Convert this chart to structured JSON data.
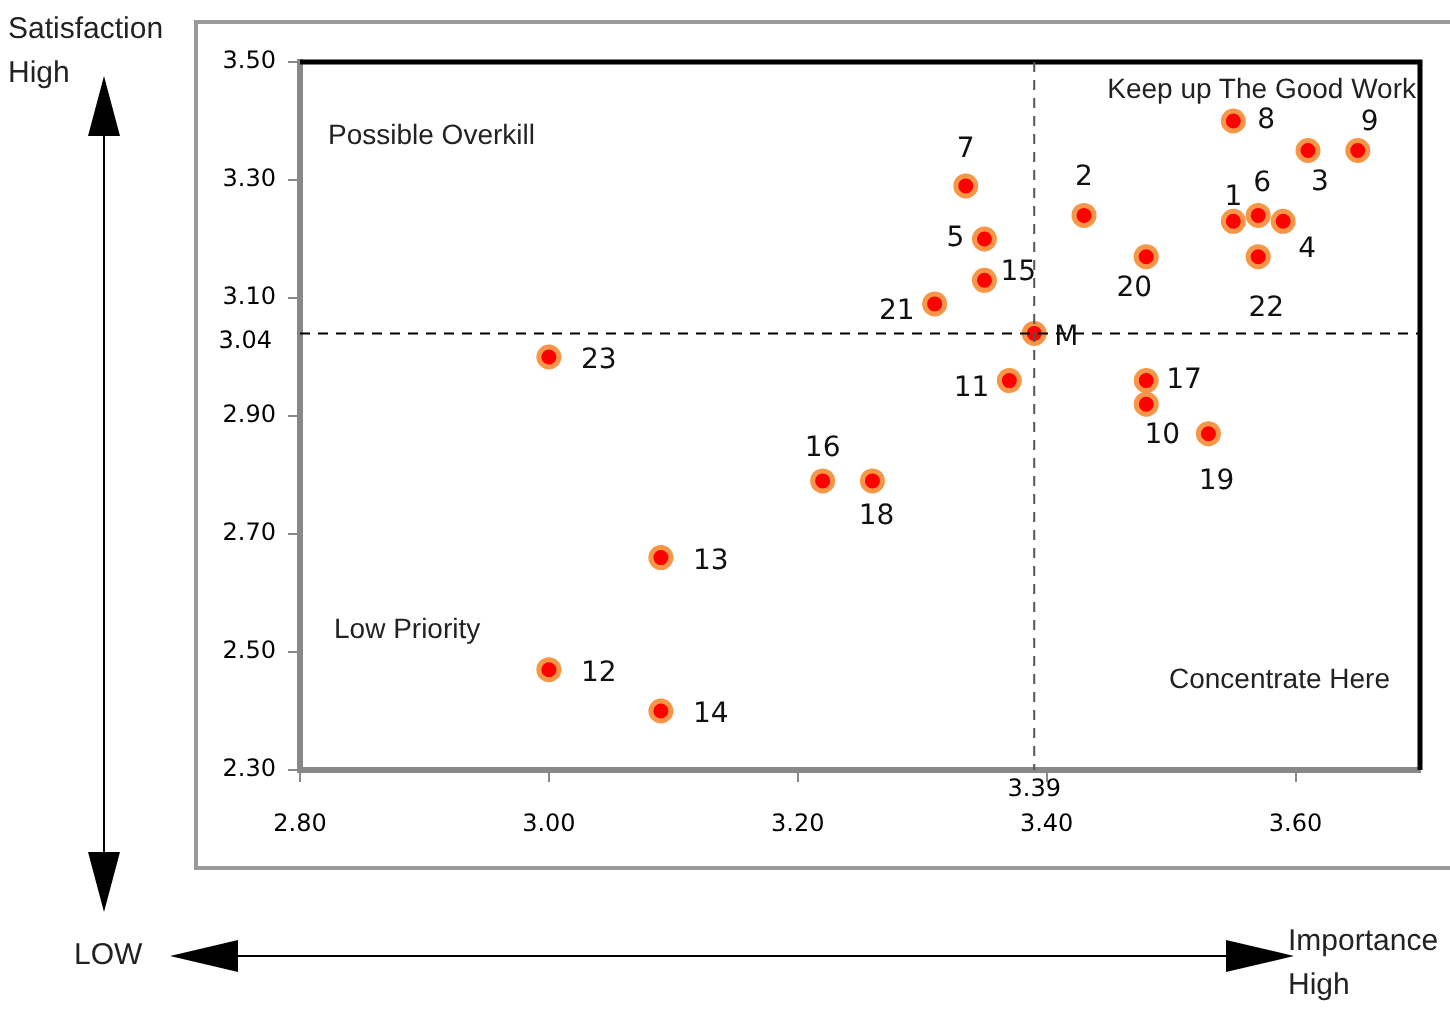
{
  "chart_data": {
    "type": "scatter",
    "xlabel": "Importance High",
    "ylabel": "Satisfaction High",
    "marker": "circle",
    "legend": false,
    "grid": false,
    "xlim": [
      2.8,
      3.7
    ],
    "ylim": [
      2.3,
      3.5
    ],
    "xticks": [
      {
        "value": 2.8,
        "label": "2.80"
      },
      {
        "value": 3.0,
        "label": "3.00"
      },
      {
        "value": 3.2,
        "label": "3.20"
      },
      {
        "value": 3.4,
        "label": "3.40"
      },
      {
        "value": 3.6,
        "label": "3.60"
      }
    ],
    "yticks": [
      {
        "value": 2.3,
        "label": "2.30"
      },
      {
        "value": 2.5,
        "label": "2.50"
      },
      {
        "value": 2.7,
        "label": "2.70"
      },
      {
        "value": 2.9,
        "label": "2.90"
      },
      {
        "value": 3.1,
        "label": "3.10"
      },
      {
        "value": 3.3,
        "label": "3.30"
      },
      {
        "value": 3.5,
        "label": "3.50"
      }
    ],
    "series": [
      {
        "color": "#ff0000",
        "x": [
          3.55,
          3.43,
          3.61,
          3.59,
          3.35,
          3.57,
          3.335,
          3.55,
          3.65,
          3.48,
          3.37,
          3.0,
          3.09,
          3.09,
          3.35,
          3.22,
          3.48,
          3.26,
          3.53,
          3.48,
          3.31,
          3.57,
          3.0,
          3.39
        ],
        "values": [
          3.23,
          3.24,
          3.35,
          3.23,
          3.2,
          3.24,
          3.29,
          3.4,
          3.35,
          2.92,
          2.96,
          2.47,
          2.66,
          2.4,
          3.13,
          2.79,
          2.96,
          2.79,
          2.87,
          3.17,
          3.09,
          3.17,
          3.0,
          3.04
        ]
      }
    ],
    "ref_lines": [
      {
        "axis": "x",
        "value": 3.39,
        "label": "3.39",
        "line_style": "dashed",
        "color": "#555555"
      },
      {
        "axis": "y",
        "value": 3.04,
        "label": "3.04",
        "line_style": "dashed",
        "color": "#000000"
      }
    ],
    "annotations": [
      "Possible Overkill",
      "Keep up The Good Work",
      "Low Priority",
      "Concentrate Here",
      "LOW",
      {
        "text": "1",
        "x": 3.55,
        "y": 3.23
      },
      {
        "text": "2",
        "x": 3.43,
        "y": 3.24
      },
      {
        "text": "3",
        "x": 3.61,
        "y": 3.35
      },
      {
        "text": "4",
        "x": 3.59,
        "y": 3.23
      },
      {
        "text": "5",
        "x": 3.35,
        "y": 3.2
      },
      {
        "text": "6",
        "x": 3.57,
        "y": 3.24
      },
      {
        "text": "7",
        "x": 3.335,
        "y": 3.29
      },
      {
        "text": "8",
        "x": 3.55,
        "y": 3.4
      },
      {
        "text": "9",
        "x": 3.65,
        "y": 3.35
      },
      {
        "text": "10",
        "x": 3.48,
        "y": 2.92
      },
      {
        "text": "11",
        "x": 3.37,
        "y": 2.96
      },
      {
        "text": "12",
        "x": 3.0,
        "y": 2.47
      },
      {
        "text": "13",
        "x": 3.09,
        "y": 2.66
      },
      {
        "text": "14",
        "x": 3.09,
        "y": 2.4
      },
      {
        "text": "15",
        "x": 3.35,
        "y": 3.13
      },
      {
        "text": "16",
        "x": 3.22,
        "y": 2.79
      },
      {
        "text": "17",
        "x": 3.48,
        "y": 2.96
      },
      {
        "text": "18",
        "x": 3.26,
        "y": 2.79
      },
      {
        "text": "19",
        "x": 3.53,
        "y": 2.87
      },
      {
        "text": "20",
        "x": 3.48,
        "y": 3.17
      },
      {
        "text": "21",
        "x": 3.31,
        "y": 3.09
      },
      {
        "text": "22",
        "x": 3.57,
        "y": 3.17
      },
      {
        "text": "23",
        "x": 3.0,
        "y": 3.0
      },
      {
        "text": "M",
        "x": 3.39,
        "y": 3.04
      }
    ]
  }
}
